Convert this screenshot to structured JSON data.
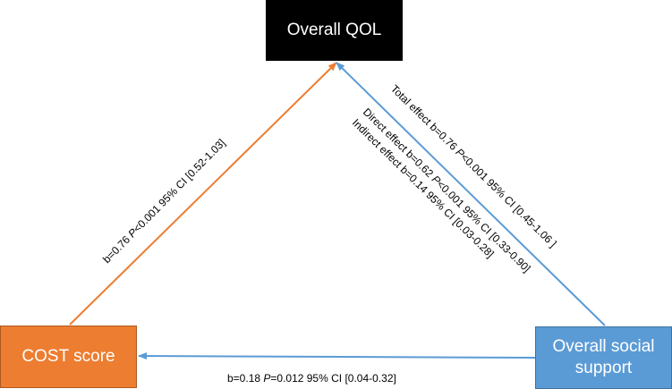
{
  "nodes": {
    "overall_qol": "Overall QOL",
    "cost_score": "COST score",
    "social_support_line1": "Overall social",
    "social_support_line2": "support"
  },
  "edges": {
    "cost_to_qol": {
      "pre": "b=0.76 ",
      "p_symbol": "P",
      "post": "<0.001 95% CI [0.52-1.03]"
    },
    "social_to_qol_total": {
      "pre": "Total effect b=0.76 ",
      "p_symbol": "P",
      "post": "<0.001 95% CI [0.45-1.06 ]"
    },
    "social_to_qol_direct": {
      "pre": "Direct effect b=0.62 ",
      "p_symbol": "P",
      "post": "<0.001 95% CI [0.33-0.90]"
    },
    "social_to_qol_indirect": {
      "text": "Indirect effect  b=0.14 95% CI [0.03-0.28]"
    },
    "social_to_cost": {
      "pre": "b=0.18 ",
      "p_symbol": "P",
      "post": "=0.012 95% CI [0.04-0.32]"
    }
  },
  "colors": {
    "qol_fill": "#000000",
    "cost_fill": "#ed7d31",
    "social_fill": "#5b9bd5",
    "cost_arrow": "#ed7d31",
    "social_arrow": "#5b9bd5"
  }
}
